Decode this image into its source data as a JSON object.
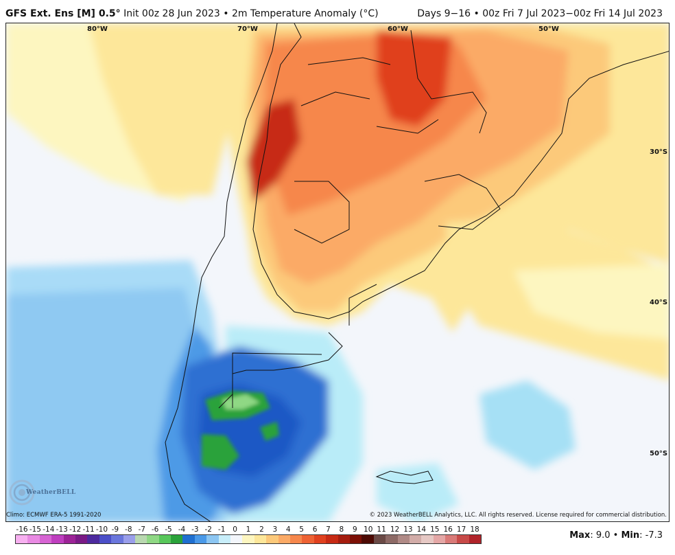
{
  "header": {
    "model": "GFS Ext. Ens [M] 0.5",
    "degree": "°",
    "run_info": "Init 00z 28 Jun 2023",
    "bullet": "•",
    "field": "2m Temperature Anomaly (",
    "unit": "°C)",
    "period": "Days 9−16 • 00z Fri 7 Jul 2023−00z Fri 14 Jul 2023"
  },
  "lon_labels": [
    "80°W",
    "70°W",
    "60°W",
    "50°W"
  ],
  "lat_labels": [
    "30°S",
    "40°S",
    "50°S"
  ],
  "footer": {
    "climo": "Climo: ECMWF ERA-5 1991-2020",
    "copyright": "© 2023 WeatherBELL Analytics, LLC. All rights reserved. License required for commercial distribution.",
    "logo_text": "WeatherBELL"
  },
  "scale": {
    "labels": [
      "-16",
      "-15",
      "-14",
      "-13",
      "-12",
      "-11",
      "-10",
      "-9",
      "-8",
      "-7",
      "-6",
      "-5",
      "-4",
      "-3",
      "-2",
      "-1",
      "0",
      "1",
      "2",
      "3",
      "4",
      "5",
      "6",
      "7",
      "8",
      "9",
      "10",
      "11",
      "12",
      "13",
      "14",
      "15",
      "16",
      "17",
      "18"
    ],
    "colors": [
      "#f7b0f0",
      "#e98ae3",
      "#d764d3",
      "#bf3fbf",
      "#9c2397",
      "#7a1a86",
      "#4d2a9e",
      "#4b4fc8",
      "#6a76dc",
      "#9a9eea",
      "#b9d8b0",
      "#8fd884",
      "#58c75a",
      "#2aa23a",
      "#1f6fd0",
      "#4a99e8",
      "#8cc6f2",
      "#c8eefa",
      "#f3f6fb",
      "#fdf6c0",
      "#fde79a",
      "#fcc97a",
      "#fbaa66",
      "#f6874c",
      "#ee6234",
      "#e0411f",
      "#c72a14",
      "#a51c0e",
      "#7c1006",
      "#4d0a04",
      "#6b4a46",
      "#8d6a66",
      "#b08a86",
      "#d2aca8",
      "#e6c8c4",
      "#e4a7a6",
      "#d97a78",
      "#c74a48",
      "#b0232a"
    ]
  },
  "stats": {
    "max_label": "Max",
    "max_value": ": 9.0",
    "sep": " • ",
    "min_label": "Min",
    "min_value": ": -7.3"
  }
}
